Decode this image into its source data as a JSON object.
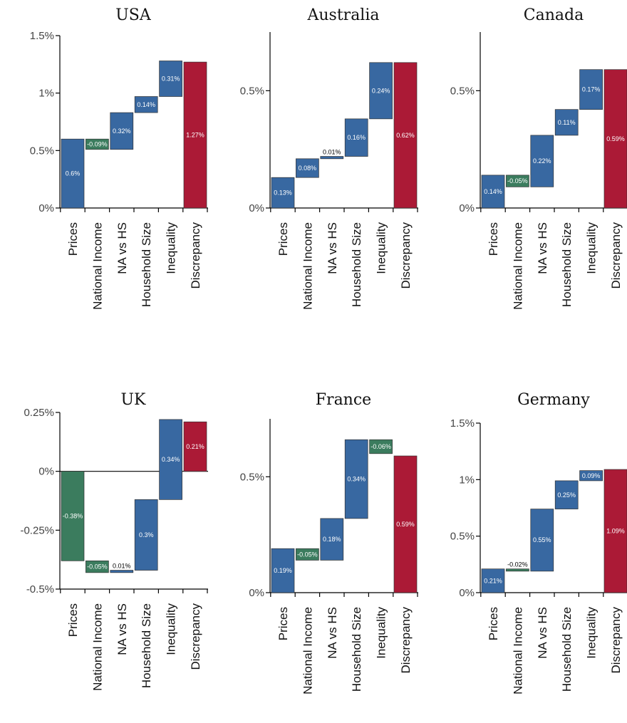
{
  "colors": {
    "positive": "#3868a1",
    "negative": "#3b7c5e",
    "total": "#ab1a36"
  },
  "chart_data": [
    {
      "type": "bar",
      "subtype": "waterfall",
      "title": "USA",
      "categories": [
        "Prices",
        "National Income",
        "NA vs HS",
        "Household Size",
        "Inequality",
        "Discrepancy"
      ],
      "values": [
        0.6,
        -0.09,
        0.32,
        0.14,
        0.31,
        1.27
      ],
      "bar_labels": [
        "0.6%",
        "-0.09%",
        "0.32%",
        "0.14%",
        "0.31%",
        "1.27%"
      ],
      "yticks": [
        0,
        0.5,
        1,
        1.5
      ],
      "ytick_labels": [
        "0%",
        "0.5%",
        "1%",
        "1.5%"
      ],
      "ylim": [
        0,
        1.5
      ],
      "zero_line": false
    },
    {
      "type": "bar",
      "subtype": "waterfall",
      "title": "Australia",
      "categories": [
        "Prices",
        "National Income",
        "NA vs HS",
        "Household Size",
        "Inequality",
        "Discrepancy"
      ],
      "values": [
        0.13,
        0.08,
        0.01,
        0.16,
        0.24,
        0.62
      ],
      "bar_labels": [
        "0.13%",
        "0.08%",
        "0.01%",
        "0.16%",
        "0.24%",
        "0.62%"
      ],
      "yticks": [
        0,
        0.5
      ],
      "ytick_labels": [
        "0%",
        "0.5%"
      ],
      "ylim": [
        0,
        0.75
      ],
      "zero_line": false
    },
    {
      "type": "bar",
      "subtype": "waterfall",
      "title": "Canada",
      "categories": [
        "Prices",
        "National Income",
        "NA vs HS",
        "Household Size",
        "Inequality",
        "Discrepancy"
      ],
      "values": [
        0.14,
        -0.05,
        0.22,
        0.11,
        0.17,
        0.59
      ],
      "bar_labels": [
        "0.14%",
        "-0.05%",
        "0.22%",
        "0.11%",
        "0.17%",
        "0.59%"
      ],
      "yticks": [
        0,
        0.5
      ],
      "ytick_labels": [
        "0%",
        "0.5%"
      ],
      "ylim": [
        0,
        0.75
      ],
      "zero_line": false
    },
    {
      "type": "bar",
      "subtype": "waterfall",
      "title": "UK",
      "categories": [
        "Prices",
        "National Income",
        "NA vs HS",
        "Household Size",
        "Inequality",
        "Discrepancy"
      ],
      "values": [
        -0.38,
        -0.05,
        0.01,
        0.3,
        0.34,
        0.21
      ],
      "bar_labels": [
        "-0.38%",
        "-0.05%",
        "0.01%",
        "0.3%",
        "0.34%",
        "0.21%"
      ],
      "yticks": [
        -0.5,
        -0.25,
        0,
        0.25
      ],
      "ytick_labels": [
        "-0.5%",
        "-0.25%",
        "0%",
        "0.25%"
      ],
      "ylim": [
        -0.5,
        0.25
      ],
      "zero_line": true
    },
    {
      "type": "bar",
      "subtype": "waterfall",
      "title": "France",
      "categories": [
        "Prices",
        "National Income",
        "NA vs HS",
        "Household Size",
        "Inequality",
        "Discrepancy"
      ],
      "values": [
        0.19,
        -0.05,
        0.18,
        0.34,
        -0.06,
        0.59
      ],
      "bar_labels": [
        "0.19%",
        "-0.05%",
        "0.18%",
        "0.34%",
        "-0.06%",
        "0.59%"
      ],
      "yticks": [
        0,
        0.5
      ],
      "ytick_labels": [
        "0%",
        "0.5%"
      ],
      "ylim": [
        0,
        0.75
      ],
      "zero_line": false
    },
    {
      "type": "bar",
      "subtype": "waterfall",
      "title": "Germany",
      "categories": [
        "Prices",
        "National Income",
        "NA vs HS",
        "Household Size",
        "Inequality",
        "Discrepancy"
      ],
      "values": [
        0.21,
        -0.02,
        0.55,
        0.25,
        0.09,
        1.09
      ],
      "bar_labels": [
        "0.21%",
        "-0.02%",
        "0.55%",
        "0.25%",
        "0.09%",
        "1.09%"
      ],
      "yticks": [
        0,
        0.5,
        1,
        1.5
      ],
      "ytick_labels": [
        "0%",
        "0.5%",
        "1%",
        "1.5%"
      ],
      "ylim": [
        0,
        1.5
      ],
      "zero_line": false
    }
  ]
}
